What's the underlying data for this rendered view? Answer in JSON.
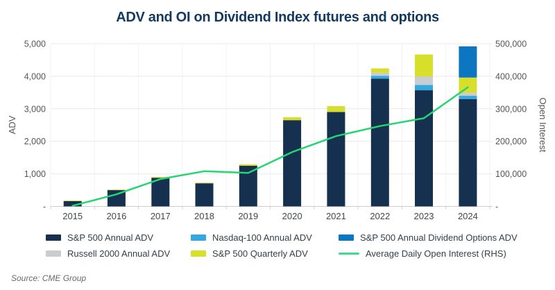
{
  "title": "ADV and OI on Dividend Index futures and options",
  "source": "Source: CME Group",
  "axes": {
    "left_label": "ADV",
    "right_label": "Open Interest",
    "left_ticks": [
      "-",
      "1,000",
      "2,000",
      "3,000",
      "4,000",
      "5,000"
    ],
    "right_ticks": [
      "-",
      "100,000",
      "200,000",
      "300,000",
      "400,000",
      "500,000"
    ],
    "x_ticks": [
      "2015",
      "2016",
      "2017",
      "2018",
      "2019",
      "2020",
      "2021",
      "2022",
      "2023",
      "2024"
    ]
  },
  "colors": {
    "sp500_annual": "#16304F",
    "russell_2000": "#C9CDD0",
    "nasdaq_100": "#35A9DF",
    "sp500_quarterly": "#D8DF2B",
    "dividend_options": "#0C77C0",
    "oi_line": "#25D572",
    "title_text": "#14395E",
    "tick_text": "#53565A",
    "gridline": "#E7E9EB",
    "baseline": "#C9CDD1"
  },
  "legend": {
    "columns": [
      [
        {
          "label": "S&P 500 Annual ADV",
          "color": "#16304F",
          "type": "box"
        },
        {
          "label": "Russell 2000 Annual ADV",
          "color": "#C9CDD0",
          "type": "box"
        }
      ],
      [
        {
          "label": "Nasdaq-100 Annual ADV",
          "color": "#35A9DF",
          "type": "box"
        },
        {
          "label": "S&P 500 Quarterly ADV",
          "color": "#D8DF2B",
          "type": "box"
        }
      ],
      [
        {
          "label": "S&P 500 Annual Dividend Options ADV",
          "color": "#0C77C0",
          "type": "box"
        },
        {
          "label": "Average Daily Open Interest (RHS)",
          "color": "#3EDB8A",
          "type": "line"
        }
      ]
    ]
  },
  "chart_data": {
    "type": "bar",
    "subtype": "stacked-bars-with-line-overlay",
    "title": "ADV and OI on Dividend Index futures and options",
    "xlabel": "",
    "ylabel_left": "ADV",
    "ylabel_right": "Open Interest",
    "ylim_left": [
      0,
      5000
    ],
    "ylim_right": [
      0,
      500000
    ],
    "grid": true,
    "legend_position": "bottom",
    "categories": [
      "2015",
      "2016",
      "2017",
      "2018",
      "2019",
      "2020",
      "2021",
      "2022",
      "2023",
      "2024"
    ],
    "series": [
      {
        "name": "S&P 500 Annual ADV",
        "type": "bar",
        "axis": "left",
        "color": "#16304F",
        "values": [
          165,
          500,
          880,
          710,
          1250,
          2650,
          2900,
          3925,
          3570,
          3300
        ]
      },
      {
        "name": "Nasdaq-100 Annual ADV",
        "type": "bar",
        "axis": "left",
        "color": "#35A9DF",
        "values": [
          0,
          0,
          0,
          0,
          0,
          0,
          0,
          90,
          165,
          100
        ]
      },
      {
        "name": "Russell 2000 Annual ADV",
        "type": "bar",
        "axis": "left",
        "color": "#C9CDD0",
        "values": [
          0,
          0,
          0,
          0,
          0,
          0,
          0,
          90,
          260,
          95
        ]
      },
      {
        "name": "S&P 500 Quarterly ADV",
        "type": "bar",
        "axis": "left",
        "color": "#D8DF2B",
        "values": [
          15,
          15,
          25,
          20,
          45,
          90,
          180,
          135,
          675,
          465
        ]
      },
      {
        "name": "S&P 500 Annual Dividend Options ADV",
        "type": "bar",
        "axis": "left",
        "color": "#0C77C0",
        "values": [
          0,
          0,
          0,
          0,
          0,
          0,
          0,
          0,
          0,
          960
        ]
      },
      {
        "name": "Average Daily Open Interest (RHS)",
        "type": "line",
        "axis": "right",
        "color": "#25D572",
        "values": [
          2000,
          37000,
          84000,
          108000,
          103000,
          167000,
          216000,
          247000,
          271000,
          366000
        ]
      }
    ]
  }
}
